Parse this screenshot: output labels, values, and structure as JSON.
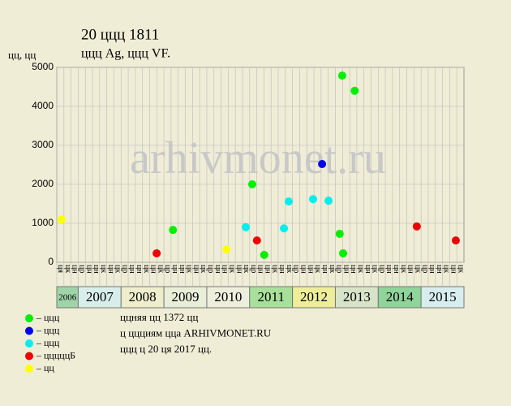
{
  "chart_data": {
    "type": "scatter",
    "title": "20 ццц 1811",
    "subtitle": "ццц Ag, ццц VF.",
    "y_label": "цц, цц",
    "watermark": "arhivmonet.ru",
    "xlim": [
      2006.5,
      2016
    ],
    "ylim": [
      0,
      5000
    ],
    "yticks": [
      0,
      1000,
      2000,
      3000,
      4000,
      5000
    ],
    "grid": true,
    "years": [
      "2006",
      "2007",
      "2008",
      "2009",
      "2010",
      "2011",
      "2012",
      "2013",
      "2014",
      "2015"
    ],
    "year_colors": [
      "#9fd4a8",
      "#d8eeea",
      "#eeeecc",
      "#e8eed8",
      "#eeeedd",
      "#a8e09a",
      "#eeee99",
      "#d8e4c8",
      "#8fd49a",
      "#d8eeee"
    ],
    "month_labels": [
      "ця",
      "цк",
      "цн",
      "цр",
      "цн",
      "цн",
      "цк",
      "цн",
      "цк",
      "цр",
      "цн",
      "цн",
      "цк",
      "цн",
      "цк",
      "цр",
      "цн",
      "цн",
      "цк",
      "цн",
      "цк",
      "цр",
      "цн",
      "цн",
      "цк",
      "цн",
      "цк",
      "цр",
      "цн",
      "цн",
      "цк",
      "цн",
      "цк",
      "цр",
      "цн",
      "цн",
      "цк",
      "цн",
      "цк",
      "цр",
      "цн",
      "цн",
      "цк",
      "цн",
      "цк",
      "цр",
      "цн",
      "цн",
      "цк",
      "цн",
      "цк",
      "цр",
      "цн",
      "цн",
      "цк",
      "цн",
      "цк"
    ],
    "series": [
      {
        "name": "– ццц",
        "color": "#00ee00",
        "x": [
          2009.21,
          2011.06,
          2011.34,
          2013.1,
          2013.16,
          2013.18,
          2013.45
        ],
        "values": [
          830,
          2000,
          190,
          730,
          4790,
          230,
          4400
        ]
      },
      {
        "name": "– ццц",
        "color": "#0000ee",
        "x": [
          2012.69
        ],
        "values": [
          2520
        ]
      },
      {
        "name": "– ццц",
        "color": "#00eeee",
        "x": [
          2010.91,
          2011.8,
          2011.91,
          2012.48,
          2012.84
        ],
        "values": [
          900,
          870,
          1560,
          1620,
          1580
        ]
      },
      {
        "name": "– цццццБ",
        "color": "#ee0000",
        "x": [
          2008.83,
          2011.17,
          2014.9,
          2015.81
        ],
        "values": [
          230,
          560,
          920,
          560
        ]
      },
      {
        "name": "– цц",
        "color": "#ffff00",
        "x": [
          2006.61,
          2010.46
        ],
        "values": [
          1100,
          330
        ]
      }
    ],
    "notes": [
      "ццняя цц 1372 цц",
      "ц ццциям цца ARHIVMONET.RU",
      "ццц ц 20 ця 2017 цц."
    ]
  }
}
